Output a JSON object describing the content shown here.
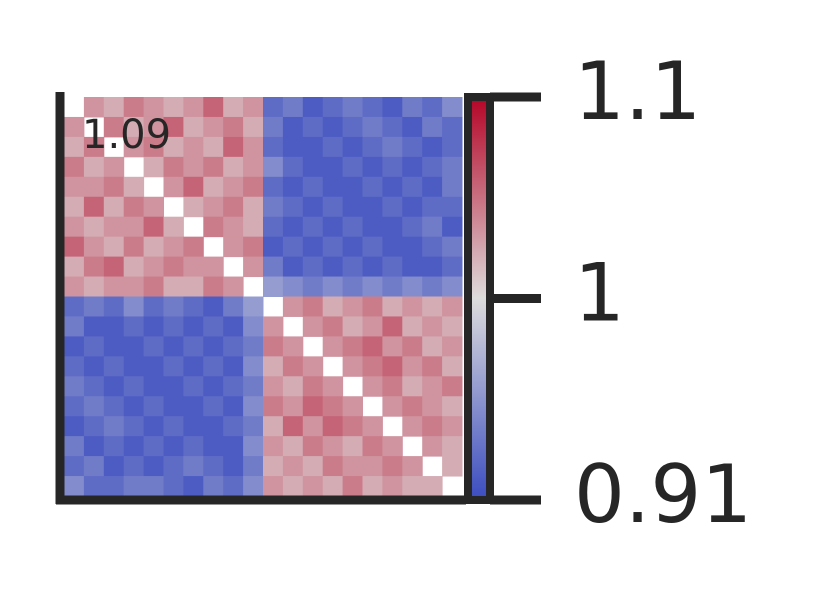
{
  "chart_data": {
    "type": "heatmap",
    "annotation": "1.09",
    "cmap": [
      "#3b4cc0",
      "#dddcdc",
      "#b40426"
    ],
    "clim": [
      0.91,
      1.09
    ],
    "cticks": [
      {
        "value": 0.91,
        "label": "0.91"
      },
      1,
      {
        "value": 1.09,
        "label": "1.1"
      }
    ],
    "values": [
      [
        null,
        1.03,
        1.02,
        1.04,
        1.03,
        1.02,
        1.03,
        1.05,
        1.02,
        1.03,
        0.93,
        0.94,
        0.92,
        0.93,
        0.94,
        0.93,
        0.92,
        0.94,
        0.93,
        0.95
      ],
      [
        1.03,
        null,
        1.04,
        1.02,
        1.03,
        1.05,
        1.02,
        1.03,
        1.04,
        1.02,
        0.94,
        0.92,
        0.93,
        0.92,
        0.93,
        0.94,
        0.93,
        0.92,
        0.94,
        0.93
      ],
      [
        1.02,
        1.04,
        null,
        1.03,
        1.04,
        1.02,
        1.03,
        1.02,
        1.05,
        1.03,
        0.93,
        0.92,
        0.92,
        0.93,
        0.92,
        0.93,
        0.94,
        0.93,
        0.92,
        0.93
      ],
      [
        1.04,
        1.02,
        1.03,
        null,
        1.02,
        1.04,
        1.03,
        1.04,
        1.02,
        1.03,
        0.95,
        0.93,
        0.92,
        0.92,
        0.93,
        0.92,
        0.93,
        0.92,
        0.93,
        0.94
      ],
      [
        1.03,
        1.03,
        1.04,
        1.02,
        null,
        1.03,
        1.05,
        1.02,
        1.03,
        1.04,
        0.93,
        0.92,
        0.93,
        0.92,
        0.92,
        0.93,
        0.92,
        0.93,
        0.92,
        0.94
      ],
      [
        1.02,
        1.05,
        1.02,
        1.04,
        1.03,
        null,
        1.02,
        1.03,
        1.04,
        1.02,
        0.94,
        0.93,
        0.92,
        0.93,
        0.92,
        0.92,
        0.93,
        0.92,
        0.93,
        0.93
      ],
      [
        1.03,
        1.02,
        1.03,
        1.03,
        1.05,
        1.02,
        null,
        1.04,
        1.03,
        1.02,
        0.93,
        0.92,
        0.93,
        0.92,
        0.93,
        0.92,
        0.92,
        0.93,
        0.94,
        0.92
      ],
      [
        1.05,
        1.03,
        1.02,
        1.04,
        1.02,
        1.03,
        1.04,
        null,
        1.03,
        1.04,
        0.92,
        0.93,
        0.92,
        0.93,
        0.92,
        0.93,
        0.92,
        0.92,
        0.93,
        0.94
      ],
      [
        1.02,
        1.04,
        1.05,
        1.02,
        1.03,
        1.04,
        1.03,
        1.03,
        null,
        1.03,
        0.94,
        0.92,
        0.93,
        0.92,
        0.93,
        0.92,
        0.93,
        0.92,
        0.92,
        0.93
      ],
      [
        1.03,
        1.02,
        1.03,
        1.03,
        1.04,
        1.02,
        1.02,
        1.04,
        1.03,
        null,
        0.96,
        0.95,
        0.94,
        0.95,
        0.94,
        0.95,
        0.94,
        0.95,
        0.94,
        0.95
      ],
      [
        0.93,
        0.94,
        0.93,
        0.95,
        0.93,
        0.94,
        0.93,
        0.92,
        0.94,
        0.96,
        null,
        1.03,
        1.04,
        1.02,
        1.03,
        1.04,
        1.02,
        1.03,
        1.02,
        1.03
      ],
      [
        0.94,
        0.92,
        0.92,
        0.93,
        0.92,
        0.93,
        0.92,
        0.93,
        0.92,
        0.95,
        1.03,
        null,
        1.03,
        1.04,
        1.02,
        1.03,
        1.05,
        1.02,
        1.03,
        1.02
      ],
      [
        0.92,
        0.93,
        0.92,
        0.92,
        0.93,
        0.92,
        0.93,
        0.92,
        0.93,
        0.94,
        1.04,
        1.03,
        null,
        1.03,
        1.04,
        1.05,
        1.03,
        1.04,
        1.02,
        1.03
      ],
      [
        0.93,
        0.92,
        0.93,
        0.92,
        0.92,
        0.93,
        0.92,
        0.93,
        0.92,
        0.95,
        1.02,
        1.04,
        1.03,
        null,
        1.03,
        1.04,
        1.05,
        1.03,
        1.04,
        1.02
      ],
      [
        0.94,
        0.93,
        0.92,
        0.93,
        0.92,
        0.92,
        0.93,
        0.92,
        0.93,
        0.94,
        1.03,
        1.02,
        1.04,
        1.03,
        null,
        1.03,
        1.04,
        1.02,
        1.03,
        1.04
      ],
      [
        0.93,
        0.94,
        0.93,
        0.92,
        0.93,
        0.92,
        0.92,
        0.93,
        0.92,
        0.95,
        1.04,
        1.03,
        1.05,
        1.04,
        1.03,
        null,
        1.03,
        1.04,
        1.03,
        1.02
      ],
      [
        0.92,
        0.93,
        0.94,
        0.93,
        0.92,
        0.93,
        0.92,
        0.92,
        0.93,
        0.94,
        1.02,
        1.05,
        1.03,
        1.05,
        1.04,
        1.03,
        null,
        1.03,
        1.04,
        1.03
      ],
      [
        0.94,
        0.92,
        0.93,
        0.92,
        0.93,
        0.92,
        0.93,
        0.92,
        0.92,
        0.95,
        1.03,
        1.02,
        1.04,
        1.03,
        1.02,
        1.04,
        1.03,
        null,
        1.03,
        1.02
      ],
      [
        0.93,
        0.94,
        0.92,
        0.93,
        0.92,
        0.93,
        0.94,
        0.93,
        0.92,
        0.94,
        1.02,
        1.03,
        1.02,
        1.04,
        1.03,
        1.03,
        1.04,
        1.03,
        null,
        1.02
      ],
      [
        0.95,
        0.93,
        0.93,
        0.94,
        0.94,
        0.93,
        0.92,
        0.94,
        0.93,
        0.95,
        1.03,
        1.02,
        1.03,
        1.02,
        1.04,
        1.02,
        1.03,
        1.02,
        1.02,
        null
      ]
    ]
  }
}
